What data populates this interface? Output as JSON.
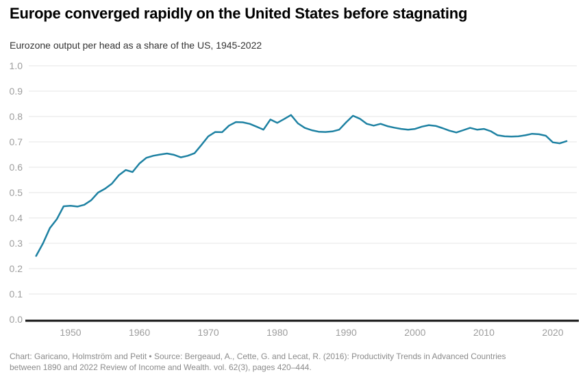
{
  "header": {
    "title": "Europe converged rapidly on the United States before stagnating",
    "subtitle": "Eurozone output per head as a share of the US, 1945-2022"
  },
  "footer": {
    "line1": "Chart: Garicano, Holmström and Petit • Source: Bergeaud, A., Cette, G. and Lecat, R. (2016):  Productivity Trends in Advanced Countries",
    "line2": "between 1890 and 2022  Review of Income and Wealth. vol. 62(3), pages 420–444."
  },
  "chart_data": {
    "type": "line",
    "title": "Europe converged rapidly on the United States before stagnating",
    "subtitle": "Eurozone output per head as a share of the US, 1945-2022",
    "xlabel": "",
    "ylabel": "",
    "ylim": [
      0,
      1
    ],
    "grid": true,
    "legend": "none",
    "yticks": [
      "0.0",
      "0.1",
      "0.2",
      "0.3",
      "0.4",
      "0.5",
      "0.6",
      "0.7",
      "0.8",
      "0.9",
      "1.0"
    ],
    "xticks": [
      "1950",
      "1960",
      "1970",
      "1980",
      "1990",
      "2000",
      "2010",
      "2020"
    ],
    "line_color": "#1d81a2",
    "axis_color": "#111111",
    "gridline_color": "#e4e4e4",
    "tick_label_color": "#9d9d9d",
    "x": [
      1945,
      1946,
      1947,
      1948,
      1949,
      1950,
      1951,
      1952,
      1953,
      1954,
      1955,
      1956,
      1957,
      1958,
      1959,
      1960,
      1961,
      1962,
      1963,
      1964,
      1965,
      1966,
      1967,
      1968,
      1969,
      1970,
      1971,
      1972,
      1973,
      1974,
      1975,
      1976,
      1977,
      1978,
      1979,
      1980,
      1981,
      1982,
      1983,
      1984,
      1985,
      1986,
      1987,
      1988,
      1989,
      1990,
      1991,
      1992,
      1993,
      1994,
      1995,
      1996,
      1997,
      1998,
      1999,
      2000,
      2001,
      2002,
      2003,
      2004,
      2005,
      2006,
      2007,
      2008,
      2009,
      2010,
      2011,
      2012,
      2013,
      2014,
      2015,
      2016,
      2017,
      2018,
      2019,
      2020,
      2021,
      2022
    ],
    "series": [
      {
        "name": "Eurozone output per head as a share of the US",
        "values": [
          0.25,
          0.3,
          0.36,
          0.395,
          0.446,
          0.448,
          0.445,
          0.452,
          0.47,
          0.5,
          0.515,
          0.535,
          0.568,
          0.589,
          0.581,
          0.615,
          0.637,
          0.645,
          0.65,
          0.654,
          0.649,
          0.639,
          0.645,
          0.655,
          0.688,
          0.722,
          0.739,
          0.738,
          0.764,
          0.778,
          0.777,
          0.771,
          0.76,
          0.748,
          0.788,
          0.775,
          0.79,
          0.806,
          0.773,
          0.755,
          0.746,
          0.74,
          0.739,
          0.741,
          0.748,
          0.777,
          0.803,
          0.791,
          0.771,
          0.764,
          0.771,
          0.762,
          0.756,
          0.751,
          0.748,
          0.751,
          0.76,
          0.766,
          0.763,
          0.754,
          0.744,
          0.737,
          0.746,
          0.755,
          0.748,
          0.751,
          0.742,
          0.726,
          0.722,
          0.721,
          0.722,
          0.726,
          0.732,
          0.73,
          0.724,
          0.698,
          0.694,
          0.703
        ]
      }
    ]
  }
}
